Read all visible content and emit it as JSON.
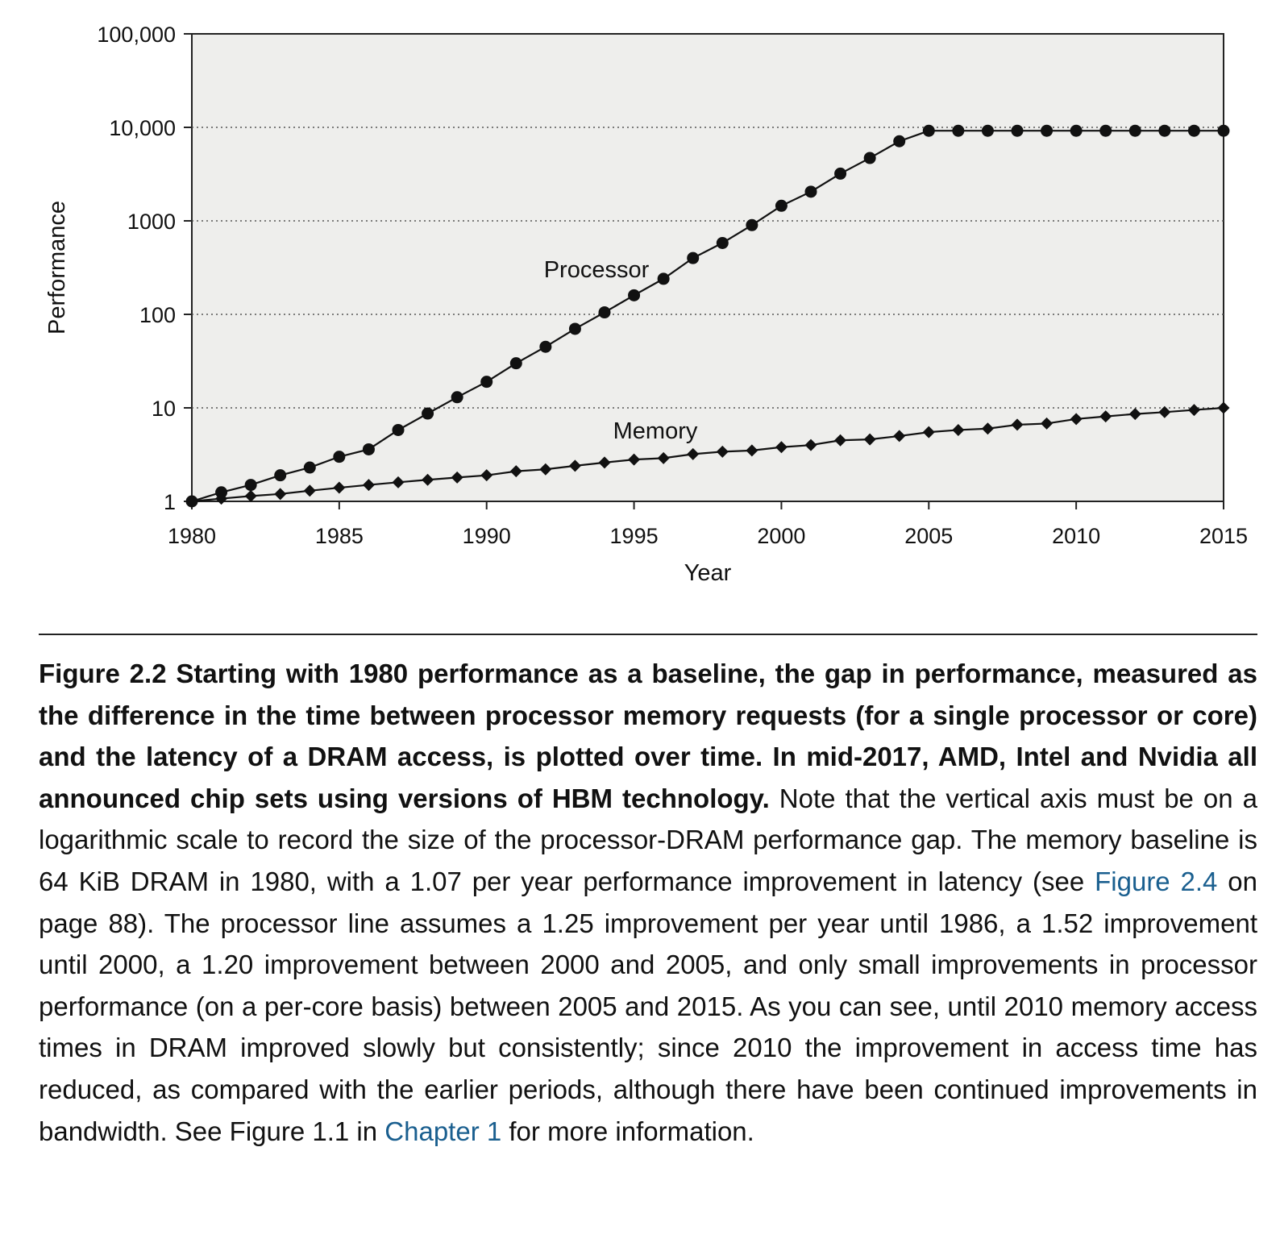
{
  "chart_data": {
    "type": "line",
    "xlabel": "Year",
    "ylabel": "Performance",
    "xlim": [
      1980,
      2015
    ],
    "ylim": [
      1,
      100000
    ],
    "yscale": "log",
    "grid": "horizontal dotted",
    "x_ticks": [
      "1980",
      "1985",
      "1990",
      "1995",
      "2000",
      "2005",
      "2010",
      "2015"
    ],
    "y_ticks": [
      {
        "value": 1,
        "label": "1"
      },
      {
        "value": 10,
        "label": "10"
      },
      {
        "value": 100,
        "label": "100"
      },
      {
        "value": 1000,
        "label": "1000"
      },
      {
        "value": 10000,
        "label": "10,000"
      },
      {
        "value": 100000,
        "label": "100,000"
      }
    ],
    "x": [
      1980,
      1981,
      1982,
      1983,
      1984,
      1985,
      1986,
      1987,
      1988,
      1989,
      1990,
      1991,
      1992,
      1993,
      1994,
      1995,
      1996,
      1997,
      1998,
      1999,
      2000,
      2001,
      2002,
      2003,
      2004,
      2005,
      2006,
      2007,
      2008,
      2009,
      2010,
      2011,
      2012,
      2013,
      2014,
      2015
    ],
    "series": [
      {
        "name": "Processor",
        "marker": "circle",
        "values": [
          1,
          1.25,
          1.5,
          1.9,
          2.3,
          3,
          3.6,
          5.8,
          8.7,
          13,
          19,
          30,
          45,
          70,
          105,
          160,
          240,
          400,
          580,
          900,
          1450,
          2050,
          3200,
          4700,
          7100,
          9200,
          9200,
          9200,
          9200,
          9200,
          9200,
          9200,
          9200,
          9200,
          9200,
          9200
        ]
      },
      {
        "name": "Memory",
        "marker": "diamond",
        "values": [
          1,
          1.07,
          1.14,
          1.2,
          1.3,
          1.4,
          1.5,
          1.6,
          1.7,
          1.8,
          1.9,
          2.1,
          2.2,
          2.4,
          2.6,
          2.8,
          2.9,
          3.2,
          3.4,
          3.5,
          3.8,
          4.0,
          4.5,
          4.6,
          5.0,
          5.5,
          5.8,
          6.0,
          6.6,
          6.8,
          7.6,
          8.1,
          8.6,
          9.0,
          9.5,
          10
        ]
      }
    ]
  },
  "caption": {
    "bold": "Figure 2.2  Starting with 1980 performance as a baseline, the gap in performance, measured as the difference in the time between processor memory requests (for a single processor or core) and the latency of a DRAM access, is plotted over time. In mid-2017, AMD, Intel and Nvidia all announced chip sets using versions of HBM technology.",
    "text1": " Note that the vertical axis must be on a logarithmic scale to record the size of the processor-DRAM performance gap. The memory baseline is 64 KiB DRAM in 1980, with a 1.07 per year performance improvement in latency (see ",
    "link1": "Figure 2.4",
    "text2": " on page 88). The processor line assumes a 1.25 improvement per year until 1986, a 1.52 improve­ment until 2000, a 1.20 improvement between 2000 and 2005, and only small improve­ments in processor performance (on a per-core basis) between 2005 and 2015. As you can see, until 2010 memory access times in DRAM improved slowly but consistently; since 2010 the improvement in access time has reduced, as compared with the earlier periods, although there have been continued improvements in bandwidth. See Figure 1.1 in ",
    "link2": "Chapter 1",
    "text3": " for more information."
  }
}
